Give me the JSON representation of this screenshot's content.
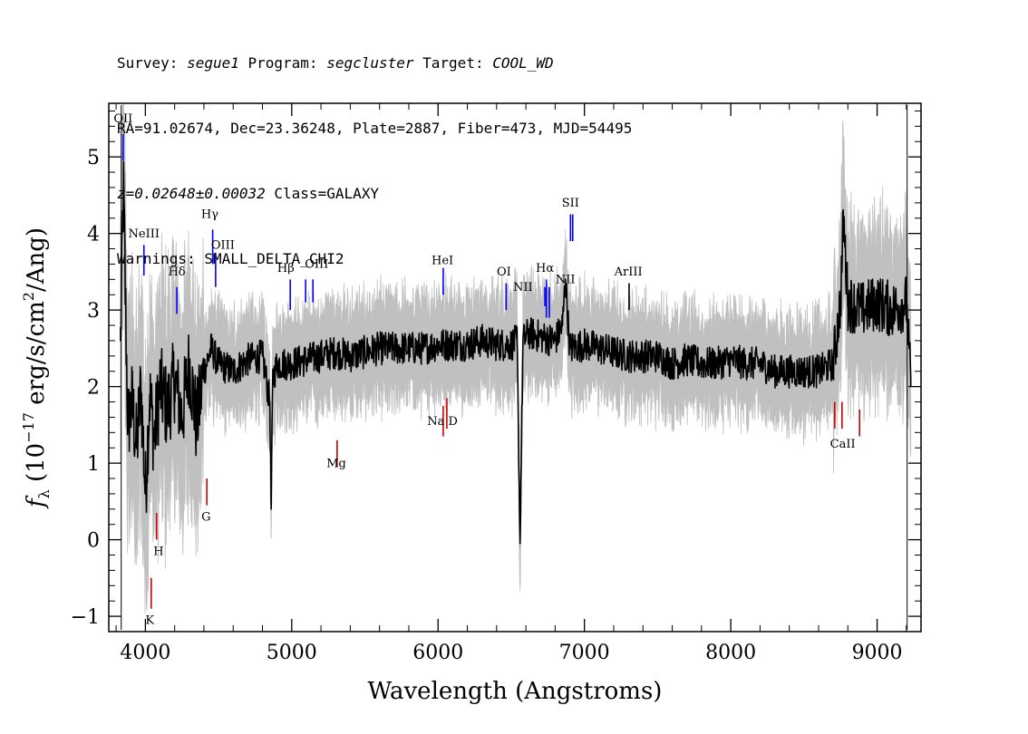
{
  "header": {
    "line1": {
      "survey_label": "Survey: ",
      "survey": "segue1",
      "program_label": " Program: ",
      "program": "segcluster",
      "target_label": " Target: ",
      "target": "COOL_WD"
    },
    "line2": "RA=91.02674, Dec=23.36248, Plate=2887, Fiber=473, MJD=54495",
    "line3": {
      "redshift": "z=0.02648±0.00032",
      "class": " Class=GALAXY"
    },
    "line4": "Warnings: SMALL_DELTA_CHI2"
  },
  "chart_data": {
    "type": "line",
    "xlabel": "Wavelength (Angstroms)",
    "ylabel_parts": {
      "f": "f",
      "sub": "λ",
      "pre": " (10",
      "exp1": "−17",
      "mid": " erg/s/cm",
      "exp2": "2",
      "post": "/Ang)"
    },
    "xlim": [
      3750,
      9300
    ],
    "ylim": [
      -1.2,
      5.7
    ],
    "x_ticks": [
      4000,
      5000,
      6000,
      7000,
      8000,
      9000
    ],
    "x_tick_labels": [
      "4000",
      "5000",
      "6000",
      "7000",
      "8000",
      "9000"
    ],
    "y_ticks": [
      -1,
      0,
      1,
      2,
      3,
      4,
      5
    ],
    "y_tick_labels": [
      "−1",
      "0",
      "1",
      "2",
      "3",
      "4",
      "5"
    ],
    "colors": {
      "flux": "#000000",
      "error_band": "#c0c0c0",
      "emission": "#0000ff",
      "absorption": "#cc0000",
      "sky": "#000000"
    },
    "flux_series": {
      "name": "flux",
      "x": [
        3830,
        3850,
        3880,
        3910,
        3940,
        3970,
        4000,
        4030,
        4060,
        4100,
        4150,
        4200,
        4250,
        4300,
        4350,
        4400,
        4450,
        4500,
        4600,
        4700,
        4800,
        4850,
        4860,
        4870,
        4900,
        5000,
        5100,
        5200,
        5300,
        5400,
        5500,
        5600,
        5700,
        5800,
        5900,
        6000,
        6100,
        6200,
        6300,
        6400,
        6500,
        6540,
        6560,
        6580,
        6620,
        6700,
        6800,
        6850,
        6870,
        6900,
        7000,
        7100,
        7200,
        7300,
        7400,
        7500,
        7600,
        7700,
        7800,
        7900,
        8000,
        8100,
        8200,
        8300,
        8400,
        8500,
        8600,
        8700,
        8750,
        8770,
        8800,
        8900,
        9000,
        9100,
        9200,
        9230
      ],
      "y": [
        2.6,
        4.6,
        1.5,
        1.8,
        1.2,
        2.0,
        0.6,
        1.9,
        1.3,
        2.0,
        1.7,
        2.1,
        1.6,
        2.3,
        1.5,
        2.2,
        2.5,
        2.3,
        2.2,
        2.35,
        2.4,
        1.8,
        0.4,
        2.1,
        2.3,
        2.3,
        2.35,
        2.4,
        2.45,
        2.4,
        2.45,
        2.5,
        2.5,
        2.5,
        2.5,
        2.55,
        2.55,
        2.55,
        2.6,
        2.55,
        2.55,
        2.6,
        -0.05,
        2.6,
        2.7,
        2.65,
        2.6,
        2.8,
        3.4,
        2.5,
        2.55,
        2.5,
        2.45,
        2.4,
        2.4,
        2.4,
        2.3,
        2.35,
        2.3,
        2.3,
        2.35,
        2.3,
        2.3,
        2.2,
        2.2,
        2.2,
        2.2,
        2.3,
        3.1,
        4.2,
        3.1,
        3.0,
        3.1,
        3.0,
        3.1,
        2.0
      ]
    },
    "noise_amplitude": 0.22,
    "error_half_width": 0.55,
    "sky_marker_x": [
      3835,
      9205
    ],
    "emission_lines": [
      {
        "label": "OII",
        "x": 3848,
        "y0": 4.95,
        "y1": 5.3,
        "label_x": 3848,
        "label_y": 5.45
      },
      {
        "label": "NeIII",
        "x": 3990,
        "y0": 3.45,
        "y1": 3.85,
        "label_x": 3990,
        "label_y": 3.95
      },
      {
        "label": "Hδ",
        "x": 4215,
        "y0": 2.95,
        "y1": 3.3,
        "label_x": 4215,
        "label_y": 3.45
      },
      {
        "label": "Hγ",
        "x": 4460,
        "y0": 3.6,
        "y1": 4.05,
        "label_x": 4440,
        "label_y": 4.2
      },
      {
        "label": "OIII",
        "x": 4480,
        "y0": 3.3,
        "y1": 3.75,
        "label_x": 4530,
        "label_y": 3.8
      },
      {
        "label": "Hβ",
        "x": 4990,
        "y0": 3.0,
        "y1": 3.4,
        "label_x": 4960,
        "label_y": 3.5
      },
      {
        "label": "OIII",
        "x": 5095,
        "y0": 3.1,
        "y1": 3.4,
        "label_x": 5170,
        "label_y": 3.55
      },
      {
        "label": "OIII",
        "x": 5145,
        "y0": 3.1,
        "y1": 3.4,
        "label_x": null,
        "label_y": null
      },
      {
        "label": "HeI",
        "x": 6035,
        "y0": 3.2,
        "y1": 3.55,
        "label_x": 6030,
        "label_y": 3.6
      },
      {
        "label": "OI",
        "x": 6465,
        "y0": 3.0,
        "y1": 3.35,
        "label_x": 6450,
        "label_y": 3.45
      },
      {
        "label": "NII",
        "x": 6730,
        "y0": 3.05,
        "y1": 3.3,
        "label_x": 6580,
        "label_y": 3.25
      },
      {
        "label": "Hα",
        "x": 6740,
        "y0": 2.9,
        "y1": 3.4,
        "label_x": 6730,
        "label_y": 3.5
      },
      {
        "label": "NII",
        "x": 6760,
        "y0": 2.9,
        "y1": 3.3,
        "label_x": 6870,
        "label_y": 3.35
      },
      {
        "label": "SII",
        "x": 6905,
        "y0": 3.9,
        "y1": 4.25,
        "label_x": 6905,
        "label_y": 4.35
      },
      {
        "label": "SII",
        "x": 6920,
        "y0": 3.9,
        "y1": 4.25,
        "label_x": null,
        "label_y": null
      },
      {
        "label": "ArIII",
        "x": 7305,
        "y0": 3.0,
        "y1": 3.35,
        "label_x": 7300,
        "label_y": 3.45
      }
    ],
    "absorption_lines": [
      {
        "label": "K",
        "x": 4040,
        "y0": -0.9,
        "y1": -0.5,
        "label_x": 4030,
        "label_y": -1.1
      },
      {
        "label": "H",
        "x": 4077,
        "y0": 0.0,
        "y1": 0.35,
        "label_x": 4090,
        "label_y": -0.2
      },
      {
        "label": "G",
        "x": 4420,
        "y0": 0.45,
        "y1": 0.8,
        "label_x": 4415,
        "label_y": 0.25
      },
      {
        "label": "Mg",
        "x": 5310,
        "y0": 0.95,
        "y1": 1.3,
        "label_x": 5305,
        "label_y": 0.95
      },
      {
        "label": "Na D",
        "x": 6035,
        "y0": 1.35,
        "y1": 1.75,
        "label_x": 6030,
        "label_y": 1.5
      },
      {
        "label": "Na D",
        "x": 6060,
        "y0": 1.45,
        "y1": 1.85,
        "label_x": null,
        "label_y": null
      },
      {
        "label": "CaII",
        "x": 8710,
        "y0": 1.45,
        "y1": 1.8,
        "label_x": 8765,
        "label_y": 1.2
      },
      {
        "label": "CaII",
        "x": 8760,
        "y0": 1.45,
        "y1": 1.8,
        "label_x": null,
        "label_y": null
      },
      {
        "label": "CaII",
        "x": 8880,
        "y0": 1.35,
        "y1": 1.7,
        "label_x": null,
        "label_y": null
      }
    ]
  }
}
